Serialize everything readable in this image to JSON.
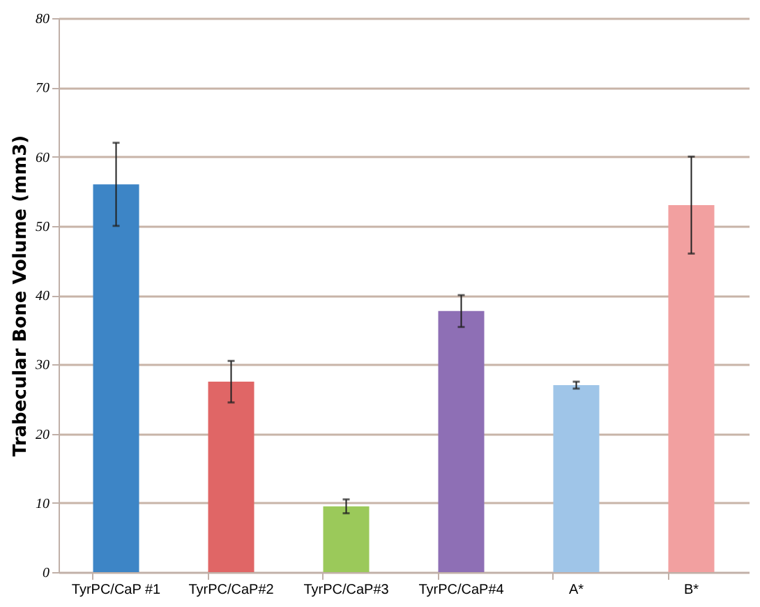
{
  "chart_data": {
    "type": "bar",
    "ylabel": "Trabecular Bone Volume (mm3)",
    "categories": [
      "TyrPC/CaP #1",
      "TyrPC/CaP#2",
      "TyrPC/CaP#3",
      "TyrPC/CaP#4",
      "A*",
      "B*"
    ],
    "values": [
      56,
      27.5,
      9.5,
      37.7,
      27,
      53
    ],
    "errors": [
      6,
      3,
      1,
      2.3,
      0.5,
      7
    ],
    "colors": [
      "#3d85c6",
      "#e06666",
      "#9bc95a",
      "#8e6fb5",
      "#9fc5e8",
      "#f2a0a0"
    ],
    "ylim": [
      0,
      80
    ],
    "yticks": [
      0,
      10,
      20,
      30,
      40,
      50,
      60,
      70,
      80
    ],
    "grid": "y"
  }
}
